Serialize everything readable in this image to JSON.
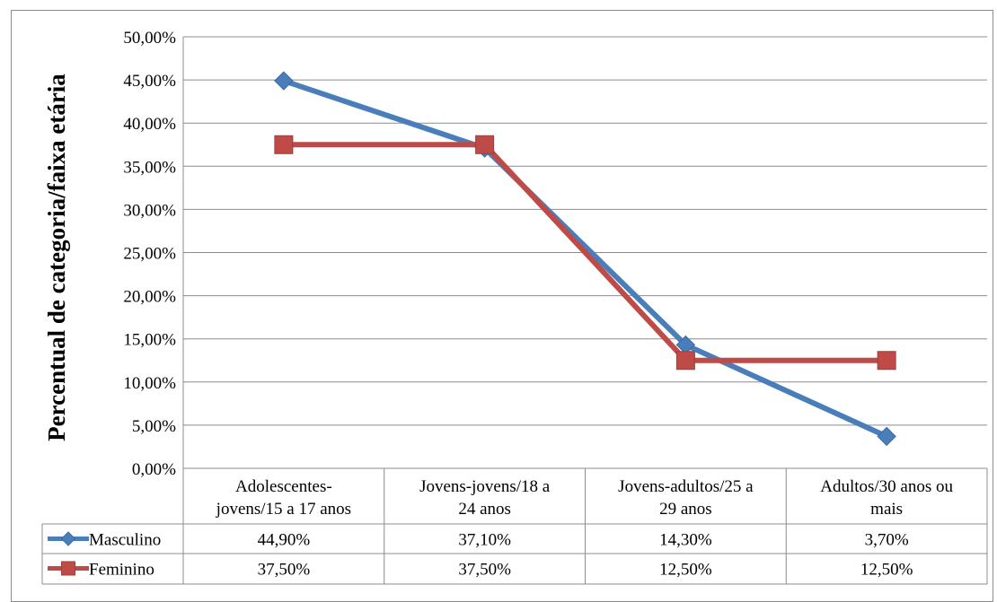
{
  "chart_data": {
    "type": "line",
    "title": "",
    "ylabel": "Percentual de categoria/faixa etária",
    "xlabel": "",
    "ylim": [
      0,
      50
    ],
    "ytick_step": 5,
    "ytick_labels": [
      "0,00%",
      "5,00%",
      "10,00%",
      "15,00%",
      "20,00%",
      "25,00%",
      "30,00%",
      "35,00%",
      "40,00%",
      "45,00%",
      "50,00%"
    ],
    "grid": true,
    "legend": "data-table",
    "categories": [
      [
        "Adolescentes-",
        "jovens/15 a 17 anos"
      ],
      [
        "Jovens-jovens/18 a",
        "24 anos"
      ],
      [
        "Jovens-adultos/25 a",
        "29 anos"
      ],
      [
        "Adultos/30 anos ou",
        "mais"
      ]
    ],
    "series": [
      {
        "name": "Masculino",
        "color": "#4a7ebb",
        "marker": "diamond",
        "values": [
          44.9,
          37.1,
          14.3,
          3.7
        ],
        "labels": [
          "44,90%",
          "37,10%",
          "14,30%",
          "3,70%"
        ]
      },
      {
        "name": "Feminino",
        "color": "#be4b48",
        "marker": "square",
        "values": [
          37.5,
          37.5,
          12.5,
          12.5
        ],
        "labels": [
          "37,50%",
          "37,50%",
          "12,50%",
          "12,50%"
        ]
      }
    ]
  }
}
